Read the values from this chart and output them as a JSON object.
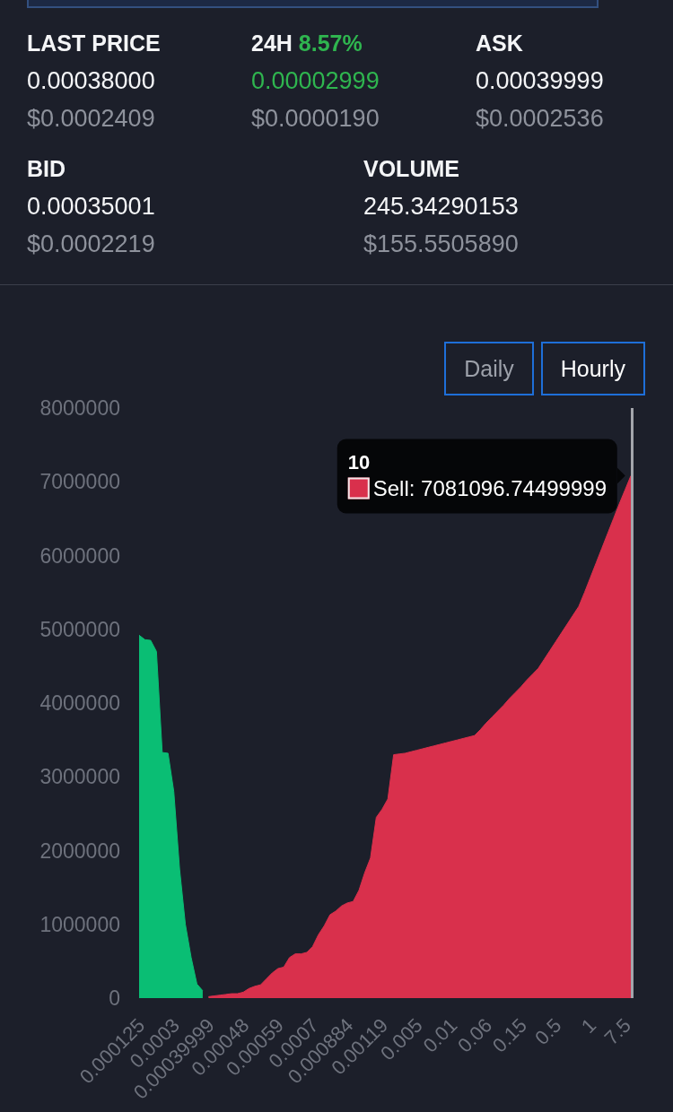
{
  "chart_data": [
    {
      "type": "other",
      "title": "LAST PRICE",
      "annotations": [
        "0.00038000",
        "$0.0002409"
      ]
    },
    {
      "type": "other",
      "title": "24H",
      "subtitle": "8.57%",
      "color": "#2fb54f",
      "annotations": [
        "0.00002999",
        "$0.0000190"
      ]
    },
    {
      "type": "other",
      "title": "ASK",
      "annotations": [
        "0.00039999",
        "$0.0002536"
      ]
    },
    {
      "type": "other",
      "title": "BID",
      "annotations": [
        "0.00035001",
        "$0.0002219"
      ]
    },
    {
      "type": "other",
      "title": "VOLUME",
      "annotations": [
        "245.34290153",
        "$155.5505890"
      ]
    },
    {
      "type": "other",
      "annotations": [
        "Daily",
        "Hourly"
      ]
    },
    {
      "type": "area",
      "categories": [
        "0.000125",
        null,
        null,
        null,
        null,
        null,
        "0.0003",
        null,
        null,
        null,
        null,
        null,
        "0.00039999",
        null,
        null,
        null,
        null,
        null,
        "0.00048",
        null,
        null,
        null,
        null,
        null,
        "0.00059",
        null,
        null,
        null,
        null,
        null,
        "0.0007",
        null,
        null,
        null,
        null,
        null,
        "0.000884",
        null,
        null,
        null,
        null,
        null,
        "0.00119",
        null,
        null,
        null,
        null,
        null,
        "0.005",
        null,
        null,
        null,
        null,
        null,
        "0.01",
        null,
        null,
        null,
        null,
        null,
        "0.06",
        null,
        null,
        null,
        null,
        null,
        "0.15",
        null,
        null,
        null,
        null,
        null,
        "0.5",
        null,
        null,
        null,
        null,
        null,
        "1",
        null,
        null,
        null,
        null,
        null,
        "7.5",
        null
      ],
      "series": [
        {
          "color": "#0abe74",
          "values": [
            4920000,
            4860000,
            4850000,
            4700000,
            3330000,
            3320000,
            2800000,
            1750000,
            1000000,
            550000,
            190000,
            100000,
            null,
            null,
            null,
            null,
            null,
            null,
            null,
            null,
            null,
            null,
            null,
            null,
            null,
            null,
            null,
            null,
            null,
            null,
            null,
            null,
            null,
            null,
            null,
            null,
            null,
            null,
            null,
            null,
            null,
            null,
            null,
            null,
            null,
            null,
            null,
            null,
            null,
            null,
            null,
            null,
            null,
            null,
            null,
            null,
            null,
            null,
            null,
            null,
            null,
            null,
            null,
            null,
            null,
            null,
            null,
            null,
            null,
            null,
            null,
            null,
            null,
            null,
            null,
            null,
            null,
            null,
            null,
            null,
            null,
            null,
            null,
            null,
            null,
            null
          ]
        },
        {
          "color": "#d9304c",
          "values": [
            null,
            null,
            null,
            null,
            null,
            null,
            null,
            null,
            null,
            null,
            null,
            null,
            20000,
            30000,
            40000,
            50000,
            60000,
            60000,
            80000,
            130000,
            160000,
            180000,
            260000,
            340000,
            400000,
            420000,
            550000,
            600000,
            600000,
            620000,
            700000,
            860000,
            980000,
            1130000,
            1180000,
            1250000,
            1290000,
            1310000,
            1460000,
            1700000,
            1900000,
            2450000,
            2560000,
            2700000,
            3300000,
            3310000,
            3320000,
            3340000,
            3360000,
            3380000,
            3400000,
            3420000,
            3440000,
            3460000,
            3480000,
            3500000,
            3520000,
            3540000,
            3560000,
            3640000,
            3730000,
            3810000,
            3890000,
            3970000,
            4060000,
            4140000,
            4220000,
            4310000,
            4390000,
            4470000,
            4590000,
            4710000,
            4830000,
            4950000,
            5070000,
            5190000,
            5310000,
            5500000,
            5700000,
            5900000,
            6100000,
            6300000,
            6500000,
            6700000,
            6890000,
            7081096.74499999
          ],
          "value_labels": [
            null,
            null,
            null,
            null,
            null,
            null,
            null,
            null,
            null,
            null,
            null,
            null,
            null,
            null,
            null,
            null,
            null,
            null,
            null,
            null,
            null,
            null,
            null,
            null,
            null,
            null,
            null,
            null,
            null,
            null,
            null,
            null,
            null,
            null,
            null,
            null,
            null,
            null,
            null,
            null,
            null,
            null,
            null,
            null,
            null,
            null,
            null,
            null,
            null,
            null,
            null,
            null,
            null,
            null,
            null,
            null,
            null,
            null,
            null,
            null,
            null,
            null,
            null,
            null,
            null,
            null,
            null,
            null,
            null,
            null,
            null,
            null,
            null,
            null,
            null,
            null,
            null,
            null,
            null,
            null,
            null,
            null,
            null,
            null,
            null,
            "Sell: 7081096.74499999"
          ]
        }
      ],
      "ylim": [
        0,
        8000000
      ],
      "yticks": [
        0,
        1000000,
        2000000,
        3000000,
        4000000,
        5000000,
        6000000,
        7000000,
        8000000
      ],
      "annotations": [
        "10"
      ]
    }
  ]
}
